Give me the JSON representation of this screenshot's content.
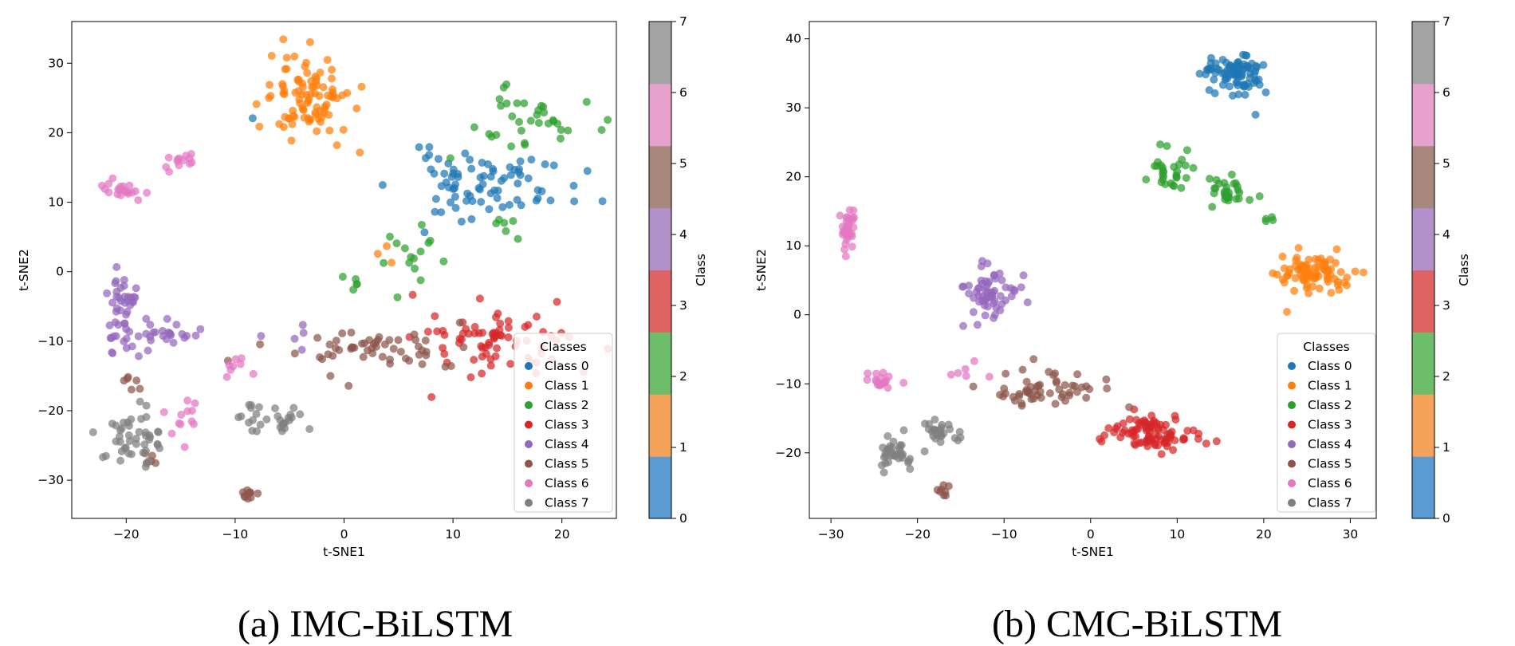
{
  "captions": [
    "(a) IMC-BiLSTM",
    "(b) CMC-BiLSTM"
  ],
  "class_colors": [
    "#1f77b4",
    "#ff7f0e",
    "#2ca02c",
    "#d62728",
    "#9467bd",
    "#8c564b",
    "#e377c2",
    "#7f7f7f"
  ],
  "colorbar": {
    "label": "Class",
    "ticks": [
      "0",
      "1",
      "2",
      "3",
      "4",
      "5",
      "6",
      "7"
    ],
    "range": [
      0,
      7
    ]
  },
  "legend": {
    "title": "Classes",
    "entries": [
      "Class 0",
      "Class 1",
      "Class 2",
      "Class 3",
      "Class 4",
      "Class 5",
      "Class 6",
      "Class 7"
    ],
    "placement": "lower-right"
  },
  "chart_data": [
    {
      "type": "scatter",
      "xlabel": "t-SNE1",
      "ylabel": "t-SNE2",
      "xlim": [
        -25,
        25
      ],
      "ylim": [
        -35.5,
        36
      ],
      "xticks": [
        -20,
        -10,
        0,
        10,
        20
      ],
      "yticks": [
        -30,
        -20,
        -10,
        0,
        10,
        20,
        30
      ],
      "grid": false,
      "clusters": [
        {
          "cls": 0,
          "n": 80,
          "cx": 13,
          "cy": 12.5,
          "sx": 5,
          "sy": 3,
          "seed": 11
        },
        {
          "cls": 0,
          "n": 1,
          "cx": -8.5,
          "cy": 22,
          "sx": 0.1,
          "sy": 0.1,
          "seed": 12
        },
        {
          "cls": 1,
          "n": 95,
          "cx": -3.5,
          "cy": 25,
          "sx": 2.5,
          "sy": 4,
          "seed": 21
        },
        {
          "cls": 1,
          "n": 3,
          "cx": 3,
          "cy": 2,
          "sx": 1.5,
          "sy": 1.5,
          "seed": 22
        },
        {
          "cls": 2,
          "n": 35,
          "cx": 17,
          "cy": 22,
          "sx": 3.5,
          "sy": 3,
          "seed": 31
        },
        {
          "cls": 2,
          "n": 15,
          "cx": 7,
          "cy": 2,
          "sx": 2.5,
          "sy": 2.5,
          "seed": 32
        },
        {
          "cls": 2,
          "n": 5,
          "cx": 0,
          "cy": -1.5,
          "sx": 2,
          "sy": 1,
          "seed": 33
        },
        {
          "cls": 2,
          "n": 6,
          "cx": 14.5,
          "cy": 7,
          "sx": 1,
          "sy": 1,
          "seed": 34
        },
        {
          "cls": 3,
          "n": 75,
          "cx": 14.5,
          "cy": -10,
          "sx": 4,
          "sy": 3,
          "seed": 41
        },
        {
          "cls": 4,
          "n": 45,
          "cx": -20.5,
          "cy": -6,
          "sx": 1,
          "sy": 4,
          "seed": 51
        },
        {
          "cls": 4,
          "n": 25,
          "cx": -16,
          "cy": -9,
          "sx": 2,
          "sy": 1.5,
          "seed": 52
        },
        {
          "cls": 4,
          "n": 5,
          "cx": -5,
          "cy": -9.5,
          "sx": 1.5,
          "sy": 1,
          "seed": 53
        },
        {
          "cls": 5,
          "n": 55,
          "cx": 2,
          "cy": -11,
          "sx": 6,
          "sy": 2,
          "seed": 61
        },
        {
          "cls": 5,
          "n": 10,
          "cx": -9,
          "cy": -32,
          "sx": 0.8,
          "sy": 0.5,
          "seed": 62
        },
        {
          "cls": 5,
          "n": 6,
          "cx": -20,
          "cy": -16.5,
          "sx": 0.8,
          "sy": 0.7,
          "seed": 63
        },
        {
          "cls": 5,
          "n": 5,
          "cx": -17.5,
          "cy": -27,
          "sx": 0.5,
          "sy": 1,
          "seed": 64
        },
        {
          "cls": 6,
          "n": 20,
          "cx": -20.5,
          "cy": 12,
          "sx": 1.3,
          "sy": 1.2,
          "seed": 71
        },
        {
          "cls": 6,
          "n": 13,
          "cx": -15,
          "cy": 16,
          "sx": 1.2,
          "sy": 1,
          "seed": 72
        },
        {
          "cls": 6,
          "n": 12,
          "cx": -14.5,
          "cy": -22,
          "sx": 1.5,
          "sy": 2,
          "seed": 73
        },
        {
          "cls": 6,
          "n": 8,
          "cx": -10,
          "cy": -14,
          "sx": 1.5,
          "sy": 1.5,
          "seed": 74
        },
        {
          "cls": 7,
          "n": 45,
          "cx": -19.5,
          "cy": -23.5,
          "sx": 1.5,
          "sy": 2.5,
          "seed": 81
        },
        {
          "cls": 7,
          "n": 30,
          "cx": -6.5,
          "cy": -21,
          "sx": 3,
          "sy": 1.5,
          "seed": 82
        }
      ]
    },
    {
      "type": "scatter",
      "xlabel": "t-SNE1",
      "ylabel": "t-SNE2",
      "xlim": [
        -32.5,
        33
      ],
      "ylim": [
        -29.5,
        42.5
      ],
      "xticks": [
        -30,
        -20,
        -10,
        0,
        10,
        20,
        30
      ],
      "yticks": [
        -20,
        -10,
        0,
        10,
        20,
        30,
        40
      ],
      "grid": false,
      "clusters": [
        {
          "cls": 0,
          "n": 90,
          "cx": 17,
          "cy": 35,
          "sx": 2.5,
          "sy": 1.8,
          "seed": 111
        },
        {
          "cls": 1,
          "n": 85,
          "cx": 26,
          "cy": 6.5,
          "sx": 2.8,
          "sy": 2,
          "seed": 121
        },
        {
          "cls": 2,
          "n": 30,
          "cx": 9,
          "cy": 21,
          "sx": 1.5,
          "sy": 1.8,
          "seed": 131
        },
        {
          "cls": 2,
          "n": 30,
          "cx": 16,
          "cy": 18,
          "sx": 1.5,
          "sy": 1.5,
          "seed": 132
        },
        {
          "cls": 2,
          "n": 4,
          "cx": 20.5,
          "cy": 14,
          "sx": 0.6,
          "sy": 0.5,
          "seed": 133
        },
        {
          "cls": 3,
          "n": 95,
          "cx": 6.5,
          "cy": -17,
          "sx": 3.5,
          "sy": 1.5,
          "seed": 141
        },
        {
          "cls": 4,
          "n": 60,
          "cx": -12,
          "cy": 3.5,
          "sx": 2,
          "sy": 2.5,
          "seed": 151
        },
        {
          "cls": 5,
          "n": 55,
          "cx": -6,
          "cy": -11,
          "sx": 4.5,
          "sy": 1.8,
          "seed": 161
        },
        {
          "cls": 5,
          "n": 8,
          "cx": -17,
          "cy": -25.5,
          "sx": 0.6,
          "sy": 0.5,
          "seed": 162
        },
        {
          "cls": 6,
          "n": 35,
          "cx": -28,
          "cy": 13,
          "sx": 0.6,
          "sy": 1.8,
          "seed": 171
        },
        {
          "cls": 6,
          "n": 18,
          "cx": -24,
          "cy": -9.5,
          "sx": 1.2,
          "sy": 0.8,
          "seed": 172
        },
        {
          "cls": 6,
          "n": 6,
          "cx": -14,
          "cy": -8.5,
          "sx": 1.5,
          "sy": 1,
          "seed": 173
        },
        {
          "cls": 7,
          "n": 35,
          "cx": -22.5,
          "cy": -20,
          "sx": 1.3,
          "sy": 1.5,
          "seed": 181
        },
        {
          "cls": 7,
          "n": 25,
          "cx": -17.5,
          "cy": -17,
          "sx": 1.3,
          "sy": 1.2,
          "seed": 182
        }
      ]
    }
  ]
}
